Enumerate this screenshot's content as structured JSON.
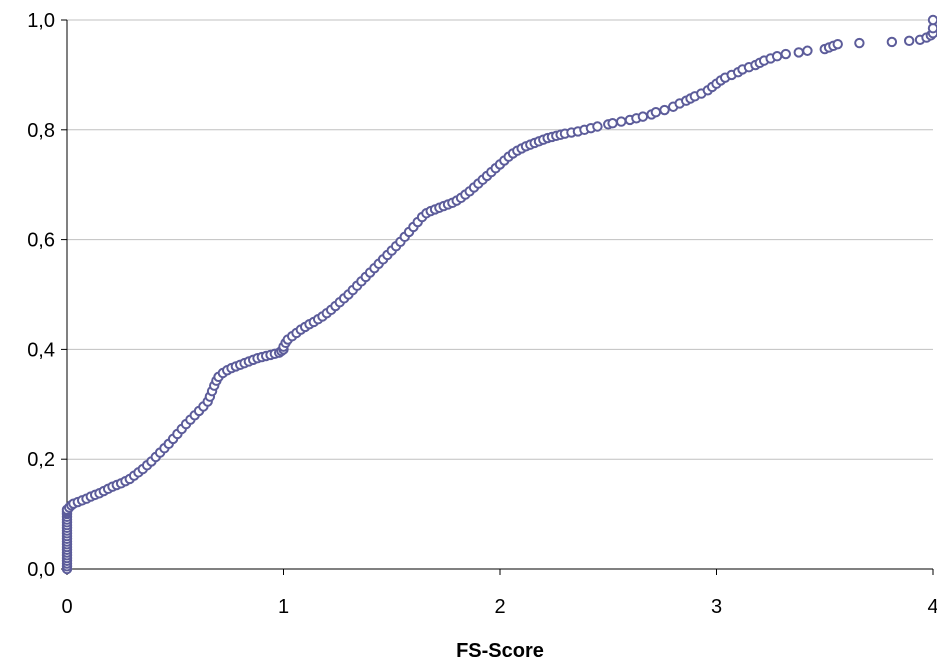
{
  "chart_data": {
    "type": "scatter",
    "title": "",
    "xlabel": "FS-Score",
    "ylabel": "",
    "xlim": [
      0,
      4
    ],
    "ylim": [
      0,
      1
    ],
    "x_ticks": [
      0,
      1,
      2,
      3,
      4
    ],
    "x_tick_labels": [
      "0",
      "1",
      "2",
      "3",
      "4"
    ],
    "y_ticks": [
      0,
      0.2,
      0.4,
      0.6,
      0.8,
      1.0
    ],
    "y_tick_labels": [
      "0,0",
      "0,2",
      "0,4",
      "0,6",
      "0,8",
      "1,0"
    ],
    "grid": "horizontal",
    "marker_color": "#5c5c9a",
    "series": [
      {
        "x": [
          0,
          0,
          0,
          0,
          0,
          0,
          0,
          0,
          0,
          0,
          0,
          0,
          0,
          0,
          0,
          0,
          0,
          0,
          0,
          0,
          0,
          0,
          0,
          0,
          0.01,
          0.02,
          0.03,
          0.05,
          0.07,
          0.09,
          0.11,
          0.13,
          0.15,
          0.17,
          0.19,
          0.21,
          0.23,
          0.25,
          0.27,
          0.29,
          0.31,
          0.33,
          0.35,
          0.37,
          0.39,
          0.41,
          0.43,
          0.45,
          0.47,
          0.49,
          0.51,
          0.53,
          0.55,
          0.57,
          0.59,
          0.61,
          0.63,
          0.65,
          0.66,
          0.67,
          0.68,
          0.69,
          0.7,
          0.72,
          0.74,
          0.76,
          0.78,
          0.8,
          0.82,
          0.84,
          0.86,
          0.88,
          0.9,
          0.92,
          0.94,
          0.96,
          0.98,
          0.99,
          1.0,
          1.0,
          1.01,
          1.02,
          1.04,
          1.06,
          1.08,
          1.1,
          1.12,
          1.14,
          1.16,
          1.18,
          1.2,
          1.22,
          1.24,
          1.26,
          1.28,
          1.3,
          1.32,
          1.34,
          1.36,
          1.38,
          1.4,
          1.42,
          1.44,
          1.46,
          1.48,
          1.5,
          1.52,
          1.54,
          1.56,
          1.58,
          1.6,
          1.62,
          1.64,
          1.66,
          1.68,
          1.7,
          1.72,
          1.74,
          1.76,
          1.78,
          1.8,
          1.82,
          1.84,
          1.86,
          1.88,
          1.9,
          1.92,
          1.94,
          1.96,
          1.98,
          2.0,
          2.02,
          2.04,
          2.06,
          2.08,
          2.1,
          2.12,
          2.14,
          2.16,
          2.18,
          2.2,
          2.22,
          2.24,
          2.26,
          2.28,
          2.3,
          2.33,
          2.36,
          2.39,
          2.42,
          2.45,
          2.5,
          2.52,
          2.56,
          2.6,
          2.63,
          2.66,
          2.7,
          2.72,
          2.76,
          2.8,
          2.83,
          2.86,
          2.88,
          2.9,
          2.93,
          2.96,
          2.98,
          3.0,
          3.02,
          3.04,
          3.07,
          3.1,
          3.12,
          3.15,
          3.18,
          3.2,
          3.22,
          3.25,
          3.28,
          3.32,
          3.38,
          3.42,
          3.5,
          3.52,
          3.54,
          3.56,
          3.66,
          3.81,
          3.89,
          3.94,
          3.97,
          3.99,
          4.0,
          4.0,
          4.0
        ],
        "y": [
          0.0,
          0.005,
          0.01,
          0.015,
          0.02,
          0.025,
          0.03,
          0.035,
          0.04,
          0.045,
          0.05,
          0.055,
          0.06,
          0.065,
          0.07,
          0.075,
          0.08,
          0.085,
          0.09,
          0.095,
          0.1,
          0.102,
          0.105,
          0.108,
          0.112,
          0.116,
          0.119,
          0.122,
          0.125,
          0.128,
          0.132,
          0.135,
          0.138,
          0.142,
          0.146,
          0.15,
          0.153,
          0.156,
          0.16,
          0.164,
          0.17,
          0.176,
          0.182,
          0.189,
          0.196,
          0.204,
          0.212,
          0.22,
          0.228,
          0.237,
          0.246,
          0.255,
          0.264,
          0.272,
          0.28,
          0.288,
          0.296,
          0.305,
          0.314,
          0.324,
          0.334,
          0.343,
          0.35,
          0.357,
          0.362,
          0.366,
          0.369,
          0.372,
          0.375,
          0.378,
          0.381,
          0.384,
          0.386,
          0.388,
          0.39,
          0.392,
          0.394,
          0.397,
          0.4,
          0.405,
          0.412,
          0.418,
          0.424,
          0.43,
          0.436,
          0.441,
          0.446,
          0.45,
          0.455,
          0.46,
          0.466,
          0.472,
          0.479,
          0.486,
          0.493,
          0.5,
          0.508,
          0.516,
          0.524,
          0.532,
          0.54,
          0.548,
          0.556,
          0.564,
          0.572,
          0.58,
          0.588,
          0.596,
          0.605,
          0.614,
          0.623,
          0.632,
          0.641,
          0.648,
          0.652,
          0.655,
          0.658,
          0.661,
          0.664,
          0.667,
          0.671,
          0.676,
          0.682,
          0.688,
          0.695,
          0.702,
          0.709,
          0.716,
          0.723,
          0.73,
          0.737,
          0.744,
          0.751,
          0.757,
          0.762,
          0.766,
          0.77,
          0.773,
          0.776,
          0.779,
          0.782,
          0.785,
          0.787,
          0.789,
          0.791,
          0.793,
          0.795,
          0.797,
          0.8,
          0.803,
          0.806,
          0.81,
          0.812,
          0.815,
          0.818,
          0.821,
          0.824,
          0.828,
          0.832,
          0.836,
          0.842,
          0.848,
          0.853,
          0.857,
          0.861,
          0.866,
          0.872,
          0.878,
          0.884,
          0.89,
          0.895,
          0.9,
          0.905,
          0.91,
          0.914,
          0.918,
          0.922,
          0.926,
          0.93,
          0.934,
          0.938,
          0.941,
          0.944,
          0.947,
          0.95,
          0.953,
          0.956,
          0.958,
          0.96,
          0.962,
          0.964,
          0.968,
          0.972,
          0.976,
          0.985,
          1.0
        ]
      }
    ]
  }
}
